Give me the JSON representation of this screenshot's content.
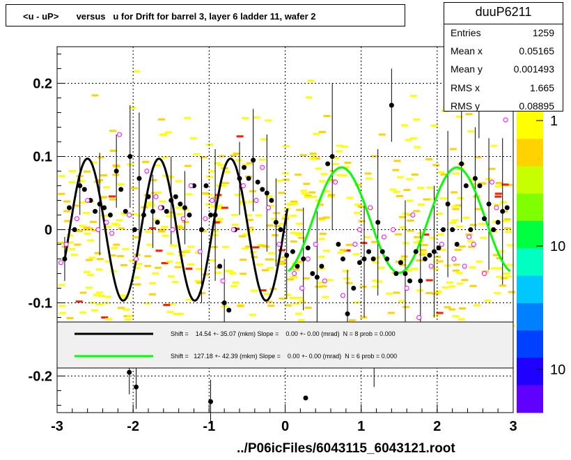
{
  "title": "<u - uP>       versus   u for Drift for barrel 3, layer 6 ladder 11, wafer 2",
  "stats": {
    "name": "duuP6211",
    "rows": [
      {
        "label": "Entries",
        "value": "1259"
      },
      {
        "label": "Mean x",
        "value": "0.05165"
      },
      {
        "label": "Mean y",
        "value": "0.001493"
      },
      {
        "label": "RMS x",
        "value": "1.665"
      },
      {
        "label": "RMS y",
        "value": "0.08895"
      }
    ]
  },
  "footer": "../P06icFiles/6043115_6043121.root",
  "chart_data": {
    "type": "scatter",
    "title": "<u - uP>       versus   u for Drift for barrel 3, layer 6 ladder 11, wafer 2",
    "xlim": [
      -3,
      3
    ],
    "ylim": [
      -0.25,
      0.25
    ],
    "x_ticks": [
      -3,
      -2,
      -1,
      0,
      1,
      2,
      3
    ],
    "y_ticks": [
      -0.2,
      -0.1,
      0,
      0.1,
      0.2
    ],
    "x_tick_labels": [
      "-3",
      "-2",
      "-1",
      "0",
      "1",
      "2",
      "3"
    ],
    "y_tick_labels": [
      "-0.2",
      "-0.1",
      "0",
      "0.1",
      "0.2"
    ],
    "grid": true,
    "colorbar": {
      "tick_labels": [
        "1",
        "10",
        "10"
      ],
      "colors": [
        "#ffff00",
        "#ffd200",
        "#c8ff00",
        "#80ff00",
        "#00ff40",
        "#00ffc0",
        "#00c8ff",
        "#0080ff",
        "#0040ff",
        "#2000ff",
        "#6000ff"
      ]
    },
    "legend": {
      "placement": "lower-center",
      "entries": [
        {
          "color": "#000000",
          "text": "Shift =    14.54 +- 35.07 (mkm) Slope =    0.00 +- 0.00 (mrad)  N = 8 prob = 0.000"
        },
        {
          "color": "#00ff00",
          "text": "Shift =   127.18 +- 42.39 (mkm) Slope =    0.00 +- 0.00 (mrad)  N = 6 prob = 0.000"
        }
      ]
    },
    "series": [
      {
        "name": "fit-black",
        "color": "#000000",
        "x_range": [
          -2.9,
          0.03
        ],
        "amplitude": 0.097,
        "period": 0.94,
        "phase": -2.6
      },
      {
        "name": "fit-green",
        "color": "#00ff00",
        "x_range": [
          0.04,
          2.96
        ],
        "amplitude": 0.072,
        "offset": 0.013,
        "period": 1.52,
        "phase": 0.74
      }
    ],
    "profile_points": [
      [
        -2.9,
        -0.04
      ],
      [
        -2.84,
        0.03
      ],
      [
        -2.77,
        0.0
      ],
      [
        -2.7,
        0.06
      ],
      [
        -2.64,
        0.055
      ],
      [
        -2.56,
        0.04
      ],
      [
        -2.5,
        0.025
      ],
      [
        -2.44,
        0.035
      ],
      [
        -2.38,
        0.03
      ],
      [
        -2.3,
        0.02
      ],
      [
        -2.22,
        0.08
      ],
      [
        -2.16,
        0.055
      ],
      [
        -2.1,
        0.025
      ],
      [
        -2.04,
        0.1
      ],
      [
        -1.98,
        0.0
      ],
      [
        -1.92,
        0.07
      ],
      [
        -1.86,
        0.02
      ],
      [
        -1.8,
        0.045
      ],
      [
        -1.74,
        0.025
      ],
      [
        -1.68,
        0.01
      ],
      [
        -1.62,
        0.03
      ],
      [
        -1.56,
        0.025
      ],
      [
        -1.5,
        0.04
      ],
      [
        -1.44,
        0.045
      ],
      [
        -1.38,
        0.035
      ],
      [
        -1.32,
        0.03
      ],
      [
        -1.26,
        0.02
      ],
      [
        -1.2,
        0.06
      ],
      [
        -1.1,
        0.0
      ],
      [
        -1.04,
        0.06
      ],
      [
        -0.98,
        0.02
      ],
      [
        -0.92,
        0.02
      ],
      [
        -0.86,
        -0.05
      ],
      [
        -0.8,
        -0.1
      ],
      [
        -0.74,
        -0.11
      ],
      [
        -0.66,
        0.0
      ],
      [
        -0.6,
        0.07
      ],
      [
        -0.54,
        0.085
      ],
      [
        -0.48,
        0.07
      ],
      [
        -0.42,
        0.095
      ],
      [
        -0.36,
        0.065
      ],
      [
        -0.3,
        0.055
      ],
      [
        -0.24,
        0.05
      ],
      [
        -0.18,
        0.04
      ],
      [
        -0.12,
        0.01
      ],
      [
        -0.06,
        0.0
      ],
      [
        0.02,
        -0.035
      ],
      [
        0.1,
        -0.03
      ],
      [
        0.16,
        -0.05
      ],
      [
        0.24,
        -0.04
      ],
      [
        0.3,
        -0.025
      ],
      [
        0.36,
        -0.06
      ],
      [
        0.42,
        -0.065
      ],
      [
        0.48,
        -0.05
      ],
      [
        0.56,
        0.09
      ],
      [
        0.62,
        0.1
      ],
      [
        0.7,
        -0.02
      ],
      [
        0.76,
        -0.04
      ],
      [
        0.82,
        -0.115
      ],
      [
        0.9,
        -0.08
      ],
      [
        0.98,
        -0.045
      ],
      [
        1.04,
        -0.04
      ],
      [
        1.1,
        -0.03
      ],
      [
        1.16,
        -0.04
      ],
      [
        1.22,
        0.01
      ],
      [
        1.28,
        -0.03
      ],
      [
        1.34,
        -0.04
      ],
      [
        1.4,
        0.17
      ],
      [
        1.46,
        -0.06
      ],
      [
        1.52,
        -0.045
      ],
      [
        1.58,
        -0.06
      ],
      [
        1.64,
        -0.07
      ],
      [
        1.72,
        -0.03
      ],
      [
        1.78,
        -0.07
      ],
      [
        1.84,
        -0.04
      ],
      [
        1.9,
        -0.035
      ],
      [
        1.96,
        -0.03
      ],
      [
        2.02,
        -0.025
      ],
      [
        2.08,
        0.0
      ],
      [
        2.14,
        0.035
      ],
      [
        2.2,
        0.0
      ],
      [
        2.26,
        -0.02
      ],
      [
        2.32,
        0.09
      ],
      [
        2.38,
        0.06
      ],
      [
        2.44,
        0.0
      ],
      [
        2.5,
        0.07
      ],
      [
        2.56,
        0.06
      ],
      [
        2.62,
        0.015
      ],
      [
        2.68,
        0.035
      ],
      [
        2.74,
        0.0
      ],
      [
        2.8,
        0.01
      ],
      [
        2.86,
        0.025
      ],
      [
        2.92,
        0.03
      ],
      [
        -2.05,
        -0.195
      ],
      [
        -1.96,
        -0.215
      ],
      [
        -0.98,
        -0.235
      ],
      [
        0.27,
        -0.23
      ],
      [
        1.17,
        -0.185
      ],
      [
        2.55,
        0.165
      ]
    ],
    "error_bars": [
      [
        -2.9,
        -0.04,
        0.03
      ],
      [
        -2.7,
        0.06,
        0.04
      ],
      [
        -2.44,
        0.035,
        0.07
      ],
      [
        -2.22,
        0.08,
        0.05
      ],
      [
        -2.04,
        0.1,
        0.07
      ],
      [
        -1.92,
        0.07,
        0.09
      ],
      [
        -1.74,
        0.025,
        0.05
      ],
      [
        -1.5,
        0.04,
        0.06
      ],
      [
        -1.32,
        0.03,
        0.05
      ],
      [
        -1.1,
        0.0,
        0.1
      ],
      [
        -0.92,
        0.02,
        0.09
      ],
      [
        -0.8,
        -0.1,
        0.06
      ],
      [
        -0.6,
        0.07,
        0.05
      ],
      [
        -0.42,
        0.095,
        0.07
      ],
      [
        -0.24,
        0.05,
        0.08
      ],
      [
        -0.12,
        0.01,
        0.06
      ],
      [
        0.02,
        -0.035,
        0.06
      ],
      [
        0.24,
        -0.04,
        0.07
      ],
      [
        0.42,
        -0.065,
        0.09
      ],
      [
        0.62,
        0.1,
        0.1
      ],
      [
        0.82,
        -0.115,
        0.06
      ],
      [
        1.04,
        -0.04,
        0.08
      ],
      [
        1.22,
        0.01,
        0.1
      ],
      [
        1.4,
        0.17,
        0.05
      ],
      [
        1.58,
        -0.06,
        0.1
      ],
      [
        1.78,
        -0.07,
        0.07
      ],
      [
        1.96,
        -0.03,
        0.09
      ],
      [
        2.14,
        0.035,
        0.1
      ],
      [
        2.32,
        0.09,
        0.08
      ],
      [
        2.5,
        0.07,
        0.07
      ],
      [
        2.68,
        0.035,
        0.09
      ],
      [
        2.86,
        0.025,
        0.1
      ],
      [
        -2.05,
        -0.195,
        0.03
      ],
      [
        -1.96,
        -0.215,
        0.03
      ],
      [
        -0.98,
        -0.235,
        0.03
      ],
      [
        1.17,
        -0.185,
        0.03
      ],
      [
        2.55,
        0.165,
        0.04
      ]
    ],
    "open_points": [
      [
        -2.95,
        -0.045
      ],
      [
        -2.88,
        -0.02
      ],
      [
        -2.6,
        0.04
      ],
      [
        -2.46,
        0.0
      ],
      [
        -2.35,
        0.01
      ],
      [
        -2.18,
        0.13
      ],
      [
        -2.05,
        0.02
      ],
      [
        -1.96,
        -0.04
      ],
      [
        -1.82,
        0.08
      ],
      [
        -1.64,
        0.03
      ],
      [
        -1.48,
        0.0
      ],
      [
        -1.34,
        0.015
      ],
      [
        -1.24,
        0.06
      ],
      [
        -1.12,
        -0.03
      ],
      [
        -0.96,
        0.04
      ],
      [
        -0.82,
        -0.07
      ],
      [
        -0.68,
        0.0
      ],
      [
        -0.55,
        0.06
      ],
      [
        -0.38,
        0.04
      ],
      [
        -0.22,
        0.03
      ],
      [
        -0.08,
        -0.02
      ],
      [
        0.12,
        -0.06
      ],
      [
        0.22,
        -0.08
      ],
      [
        0.4,
        -0.02
      ],
      [
        0.52,
        -0.07
      ],
      [
        0.66,
        0.065
      ],
      [
        0.76,
        -0.09
      ],
      [
        0.92,
        -0.02
      ],
      [
        1.12,
        0.03
      ],
      [
        1.3,
        -0.01
      ],
      [
        1.42,
        0.0
      ],
      [
        1.6,
        -0.08
      ],
      [
        1.76,
        -0.12
      ],
      [
        1.92,
        -0.05
      ],
      [
        2.06,
        -0.02
      ],
      [
        2.22,
        -0.04
      ],
      [
        2.36,
        -0.05
      ],
      [
        2.48,
        -0.02
      ],
      [
        2.62,
        -0.06
      ],
      [
        2.78,
        0.03
      ],
      [
        2.9,
        0.15
      ],
      [
        -2.74,
        0.015
      ],
      [
        -2.28,
        -0.005
      ],
      [
        -1.7,
        0.045
      ],
      [
        -1.05,
        0.015
      ],
      [
        -0.3,
        0.085
      ],
      [
        0.3,
        -0.04
      ],
      [
        0.98,
        0.0
      ],
      [
        1.68,
        0.02
      ],
      [
        2.42,
        -0.01
      ],
      [
        2.72,
        0.065
      ]
    ]
  }
}
